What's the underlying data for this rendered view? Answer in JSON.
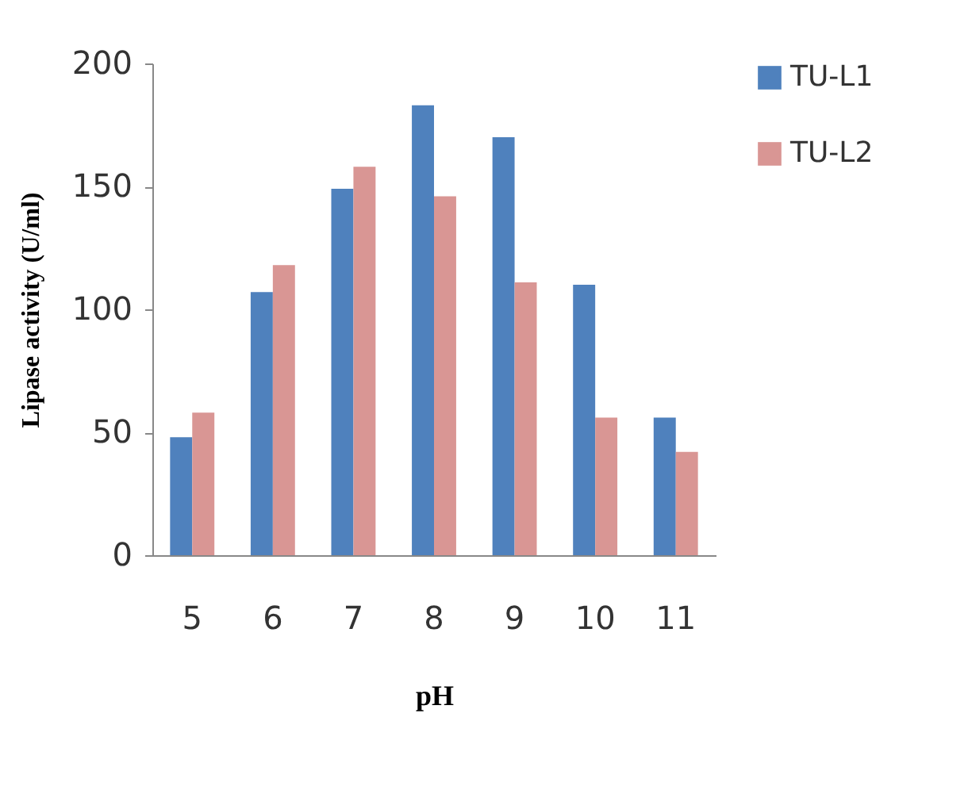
{
  "chart_data": {
    "type": "bar",
    "xlabel": "pH",
    "ylabel": "Lipase activity (U/ml)",
    "categories": [
      "5",
      "6",
      "7",
      "8",
      "9",
      "10",
      "11"
    ],
    "series": [
      {
        "name": "TU-L1",
        "color": "#4f81bd",
        "values": [
          48,
          107,
          149,
          183,
          170,
          110,
          56
        ]
      },
      {
        "name": "TU-L2",
        "color": "#d99694",
        "values": [
          58,
          118,
          158,
          146,
          111,
          56,
          42
        ]
      }
    ],
    "ylim": [
      0,
      200
    ],
    "yticks": [
      0,
      50,
      100,
      150,
      200
    ],
    "grid": false,
    "legend": "right"
  }
}
